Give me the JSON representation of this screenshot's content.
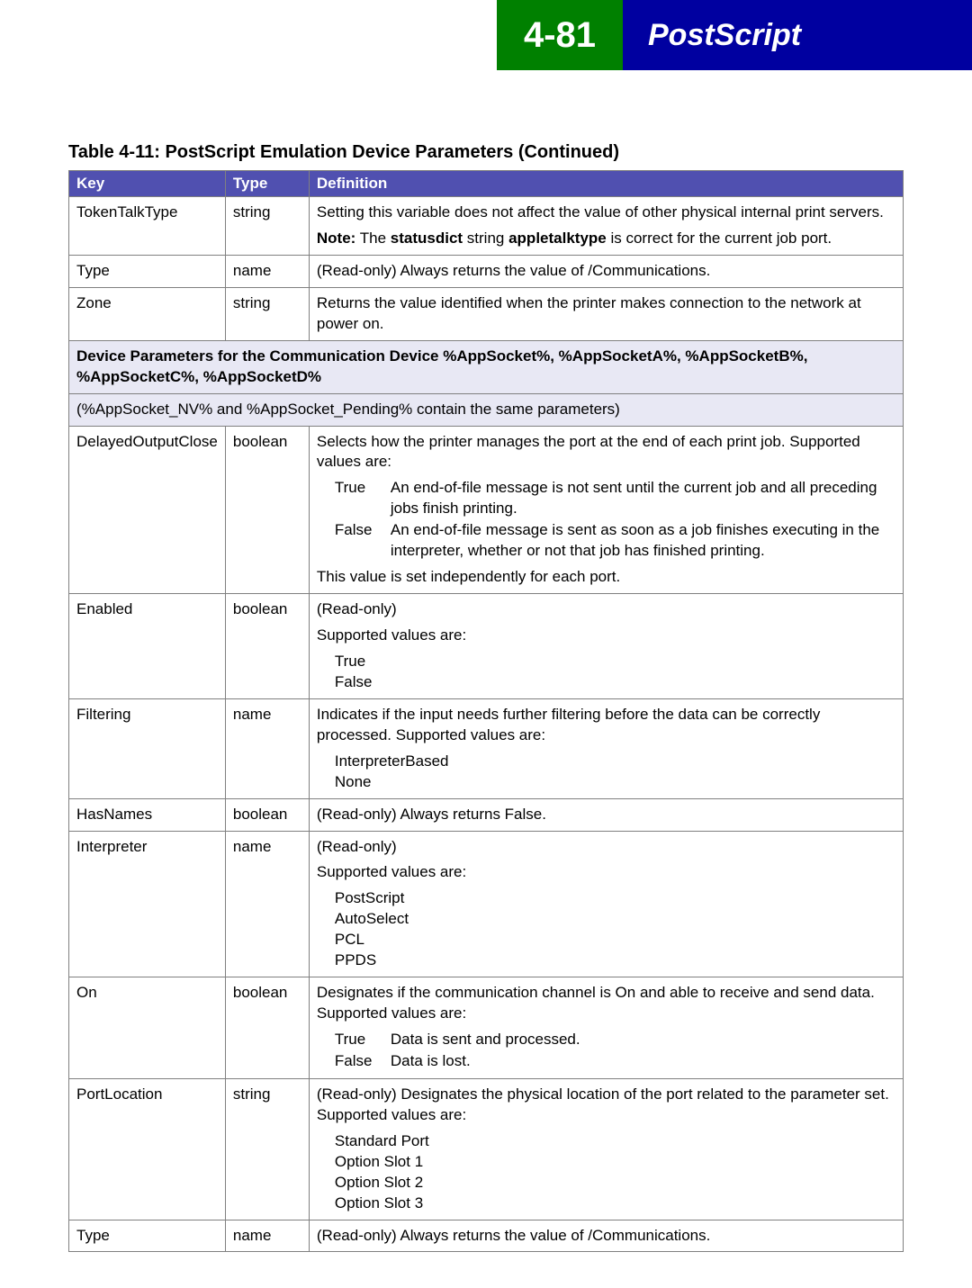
{
  "header": {
    "page_number": "4-81",
    "section_title": "PostScript"
  },
  "table": {
    "caption": "Table 4-11:  PostScript Emulation Device Parameters (Continued)",
    "columns": [
      "Key",
      "Type",
      "Definition"
    ],
    "rows": {
      "r0": {
        "key": "TokenTalkType",
        "type": "string",
        "def_line1": "Setting this variable does not affect the value of other physical internal print servers.",
        "note_prefix": "Note:",
        "note_mid1": " The ",
        "note_bold1": "statusdict",
        "note_mid2": " string ",
        "note_bold2": "appletalktype",
        "note_rest": " is correct for the current job port."
      },
      "r1": {
        "key": "Type",
        "type": "name",
        "def": "(Read-only) Always returns the value of /Communications."
      },
      "r2": {
        "key": "Zone",
        "type": "string",
        "def": "Returns the value identified when the printer makes connection to the network at power on."
      },
      "section": {
        "line1": "Device Parameters for the Communication Device %AppSocket%, %AppSocketA%, %AppSocketB%, %AppSocketC%, %AppSocketD%",
        "line2": "(%AppSocket_NV% and %AppSocket_Pending% contain the same parameters)"
      },
      "r3": {
        "key": "DelayedOutputClose",
        "type": "boolean",
        "def_intro": "Selects how the printer manages the port at the end of each print job. Supported values are:",
        "kv": [
          {
            "k": "True",
            "v": "An end-of-file message is not sent until the current job and all preceding jobs finish printing."
          },
          {
            "k": "False",
            "v": "An end-of-file message is sent as soon as a job finishes executing in the interpreter, whether or not that job has finished printing."
          }
        ],
        "def_after": "This value is set independently for each port."
      },
      "r4": {
        "key": "Enabled",
        "type": "boolean",
        "def_intro": "(Read-only)",
        "def_support": "Supported values are:",
        "list": [
          "True",
          "False"
        ]
      },
      "r5": {
        "key": "Filtering",
        "type": "name",
        "def_intro": "Indicates if the input needs further filtering before the data can be correctly processed. Supported values are:",
        "list": [
          "InterpreterBased",
          "None"
        ]
      },
      "r6": {
        "key": "HasNames",
        "type": "boolean",
        "def": "(Read-only) Always returns False."
      },
      "r7": {
        "key": "Interpreter",
        "type": "name",
        "def_intro": "(Read-only)",
        "def_support": "Supported values are:",
        "list": [
          "PostScript",
          "AutoSelect",
          "PCL",
          "PPDS"
        ]
      },
      "r8": {
        "key": "On",
        "type": "boolean",
        "def_intro": "Designates if the communication channel is On and able to receive and send data. Supported values are:",
        "kv": [
          {
            "k": "True",
            "v": "Data is sent and processed."
          },
          {
            "k": "False",
            "v": "Data is lost."
          }
        ]
      },
      "r9": {
        "key": "PortLocation",
        "type": "string",
        "def_intro": "(Read-only) Designates the physical location of the port related to the parameter set. Supported values are:",
        "list": [
          "Standard Port",
          "Option Slot 1",
          "Option Slot 2",
          "Option Slot 3"
        ]
      },
      "r10": {
        "key": "Type",
        "type": "name",
        "def": "(Read-only) Always returns the value of /Communications."
      }
    }
  },
  "colors": {
    "header_blue": "#0000a0",
    "header_green": "#008000",
    "table_header": "#5050b0",
    "section_bg": "#e8e8f4",
    "border": "#808080"
  }
}
